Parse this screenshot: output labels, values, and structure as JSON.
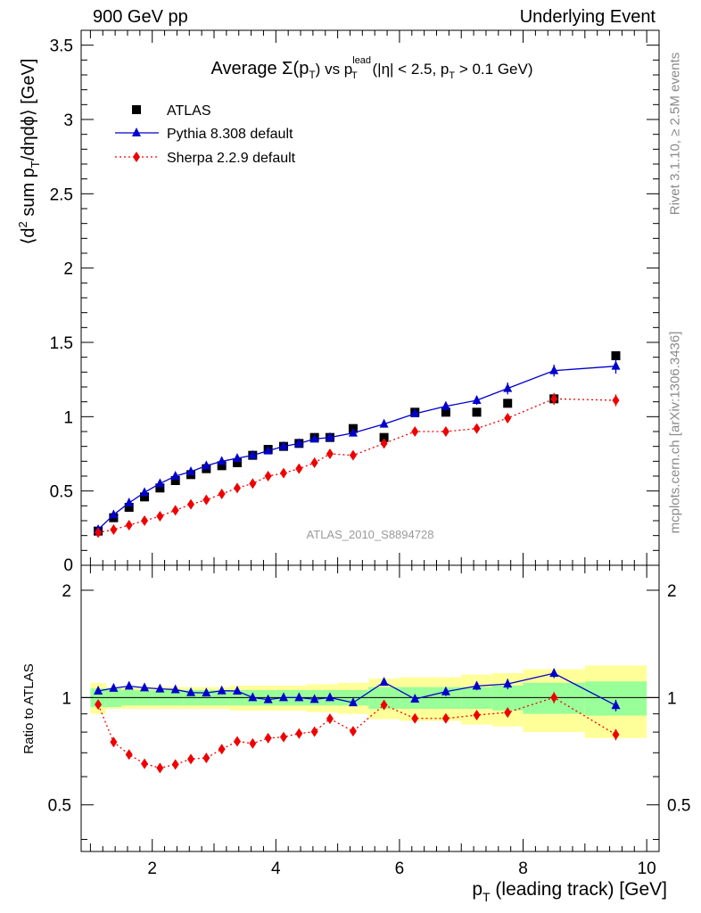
{
  "header": {
    "left": "900 GeV pp",
    "right": "Underlying Event"
  },
  "side": {
    "rivet": "Rivet 3.1.10, ≥ 2.5M events",
    "mcplots": "mcplots.cern.ch [arXiv:1306.3436]"
  },
  "chart_data": {
    "type": "scatter",
    "title": {
      "prefix": "Average ",
      "sigma": "Σ(p",
      "sigma_sub": "T",
      "sigma_close": ")",
      "vs": " vs p",
      "lead_sup": "lead",
      "lead_sub": "T",
      "cuts_a": " (|η| < 2.5, p",
      "cuts_sub": "T",
      "cuts_b": " > 0.1 GeV)"
    },
    "analysis_label": "ATLAS_2010_S8894728",
    "xlabel": {
      "main": "p",
      "sub": "T",
      "rest": " (leading track) [GeV]"
    },
    "ylabel": {
      "a": "⟨d",
      "sup": "2",
      "b": " sum p",
      "sub": "T",
      "c": "/dηdϕ⟩ [GeV]"
    },
    "ratio_ylabel": "Ratio to ATLAS",
    "xlim": [
      0.85,
      10.2
    ],
    "ylim": [
      0,
      3.6
    ],
    "ratio_ylim": [
      0.37,
      2.35
    ],
    "x_ticks": [
      2,
      4,
      6,
      8,
      10
    ],
    "y_ticks": [
      0.5,
      1,
      1.5,
      2,
      2.5,
      3,
      3.5
    ],
    "y_tick_labels": [
      "0.5",
      "1",
      "1.5",
      "2",
      "2.5",
      "3",
      "3.5"
    ],
    "y_bottom_label": "0",
    "ratio_ticks": [
      0.5,
      1,
      2
    ],
    "ratio_tick_labels": [
      "0.5",
      "1",
      "2"
    ],
    "legend": {
      "placement": "top-left"
    },
    "x": [
      1.125,
      1.375,
      1.625,
      1.875,
      2.125,
      2.375,
      2.625,
      2.875,
      3.125,
      3.375,
      3.625,
      3.875,
      4.125,
      4.375,
      4.625,
      4.875,
      5.25,
      5.75,
      6.25,
      6.75,
      7.25,
      7.75,
      8.5,
      9.5
    ],
    "x_edges": [
      1.0,
      1.25,
      1.5,
      1.75,
      2.0,
      2.25,
      2.5,
      2.75,
      3.0,
      3.25,
      3.5,
      3.75,
      4.0,
      4.25,
      4.5,
      4.75,
      5.0,
      5.5,
      6.0,
      6.5,
      7.0,
      7.5,
      8.0,
      9.0,
      10.0
    ],
    "band_inner": [
      0.06,
      0.06,
      0.05,
      0.05,
      0.05,
      0.05,
      0.05,
      0.05,
      0.05,
      0.05,
      0.05,
      0.05,
      0.05,
      0.05,
      0.05,
      0.05,
      0.05,
      0.07,
      0.07,
      0.07,
      0.07,
      0.08,
      0.1,
      0.11
    ],
    "band_outer": [
      0.1,
      0.07,
      0.07,
      0.07,
      0.07,
      0.07,
      0.07,
      0.07,
      0.07,
      0.08,
      0.08,
      0.08,
      0.08,
      0.08,
      0.09,
      0.09,
      0.1,
      0.13,
      0.14,
      0.14,
      0.16,
      0.17,
      0.2,
      0.23
    ],
    "series": [
      {
        "name": "ATLAS",
        "color": "#000000",
        "marker": "square",
        "line": "none",
        "values": [
          0.23,
          0.32,
          0.39,
          0.46,
          0.52,
          0.57,
          0.61,
          0.65,
          0.67,
          0.69,
          0.74,
          0.78,
          0.8,
          0.82,
          0.86,
          0.86,
          0.92,
          0.86,
          1.03,
          1.03,
          1.03,
          1.09,
          1.12,
          1.41
        ]
      },
      {
        "name": "Pythia 8.308 default",
        "color": "#0000cc",
        "marker": "triangle",
        "line": "solid",
        "values": [
          0.24,
          0.34,
          0.42,
          0.49,
          0.55,
          0.6,
          0.63,
          0.67,
          0.7,
          0.72,
          0.74,
          0.77,
          0.8,
          0.82,
          0.85,
          0.86,
          0.89,
          0.95,
          1.02,
          1.07,
          1.11,
          1.19,
          1.31,
          1.34
        ],
        "errors": [
          0.005,
          0.005,
          0.005,
          0.005,
          0.005,
          0.005,
          0.005,
          0.005,
          0.005,
          0.005,
          0.005,
          0.005,
          0.005,
          0.005,
          0.005,
          0.005,
          0.01,
          0.01,
          0.02,
          0.03,
          0.03,
          0.04,
          0.04,
          0.05
        ]
      },
      {
        "name": "Sherpa 2.2.9 default",
        "color": "#ee0000",
        "marker": "diamond",
        "line": "dotted",
        "values": [
          0.22,
          0.24,
          0.27,
          0.3,
          0.33,
          0.37,
          0.41,
          0.44,
          0.48,
          0.52,
          0.55,
          0.6,
          0.62,
          0.65,
          0.69,
          0.75,
          0.74,
          0.82,
          0.9,
          0.9,
          0.92,
          0.99,
          1.12,
          1.11
        ],
        "errors": [
          0.005,
          0.005,
          0.005,
          0.005,
          0.005,
          0.005,
          0.005,
          0.005,
          0.005,
          0.005,
          0.005,
          0.005,
          0.005,
          0.005,
          0.005,
          0.005,
          0.01,
          0.02,
          0.02,
          0.02,
          0.02,
          0.03,
          0.04,
          0.04
        ]
      }
    ]
  }
}
